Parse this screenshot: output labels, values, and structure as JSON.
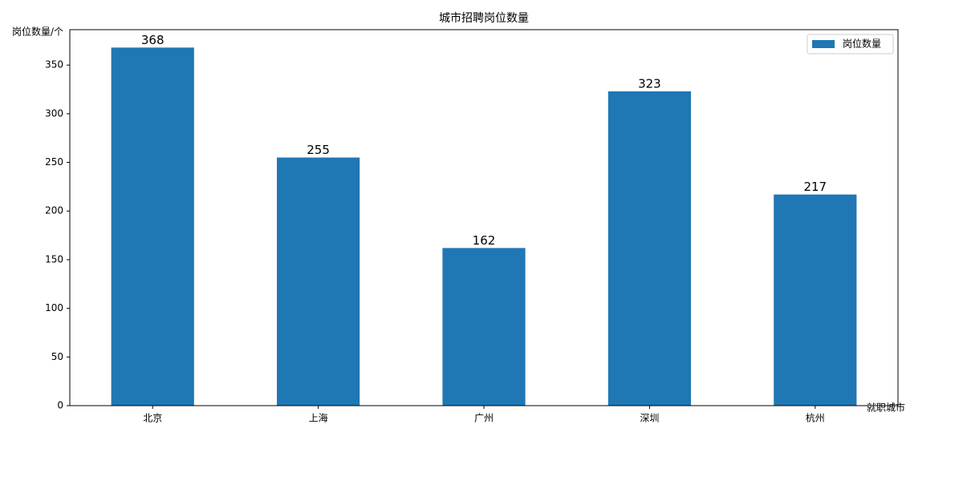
{
  "chart_data": {
    "type": "bar",
    "title": "城市招聘岗位数量",
    "x_label": "就职城市",
    "y_label": "岗位数量/个",
    "categories": [
      "北京",
      "上海",
      "广州",
      "深圳",
      "杭州"
    ],
    "series": [
      {
        "name": "岗位数量",
        "color": "#1f77b4",
        "values": [
          368,
          255,
          162,
          323,
          217
        ]
      }
    ],
    "ylim": [
      0,
      386.4
    ],
    "yticks": [
      0,
      50,
      100,
      150,
      200,
      250,
      300,
      350
    ],
    "grid": false,
    "legend": "upper right"
  }
}
